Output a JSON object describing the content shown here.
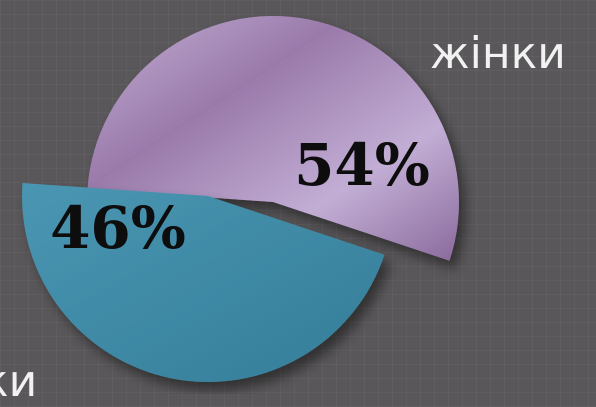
{
  "chart_data": {
    "type": "pie",
    "title": "",
    "categories": [
      "жінки",
      "ки"
    ],
    "values": [
      54,
      46
    ],
    "data_labels": [
      "54%",
      "46%"
    ],
    "colors": [
      "#b89fc9",
      "#3e8ba7"
    ],
    "exploded": true,
    "legend": "none"
  }
}
